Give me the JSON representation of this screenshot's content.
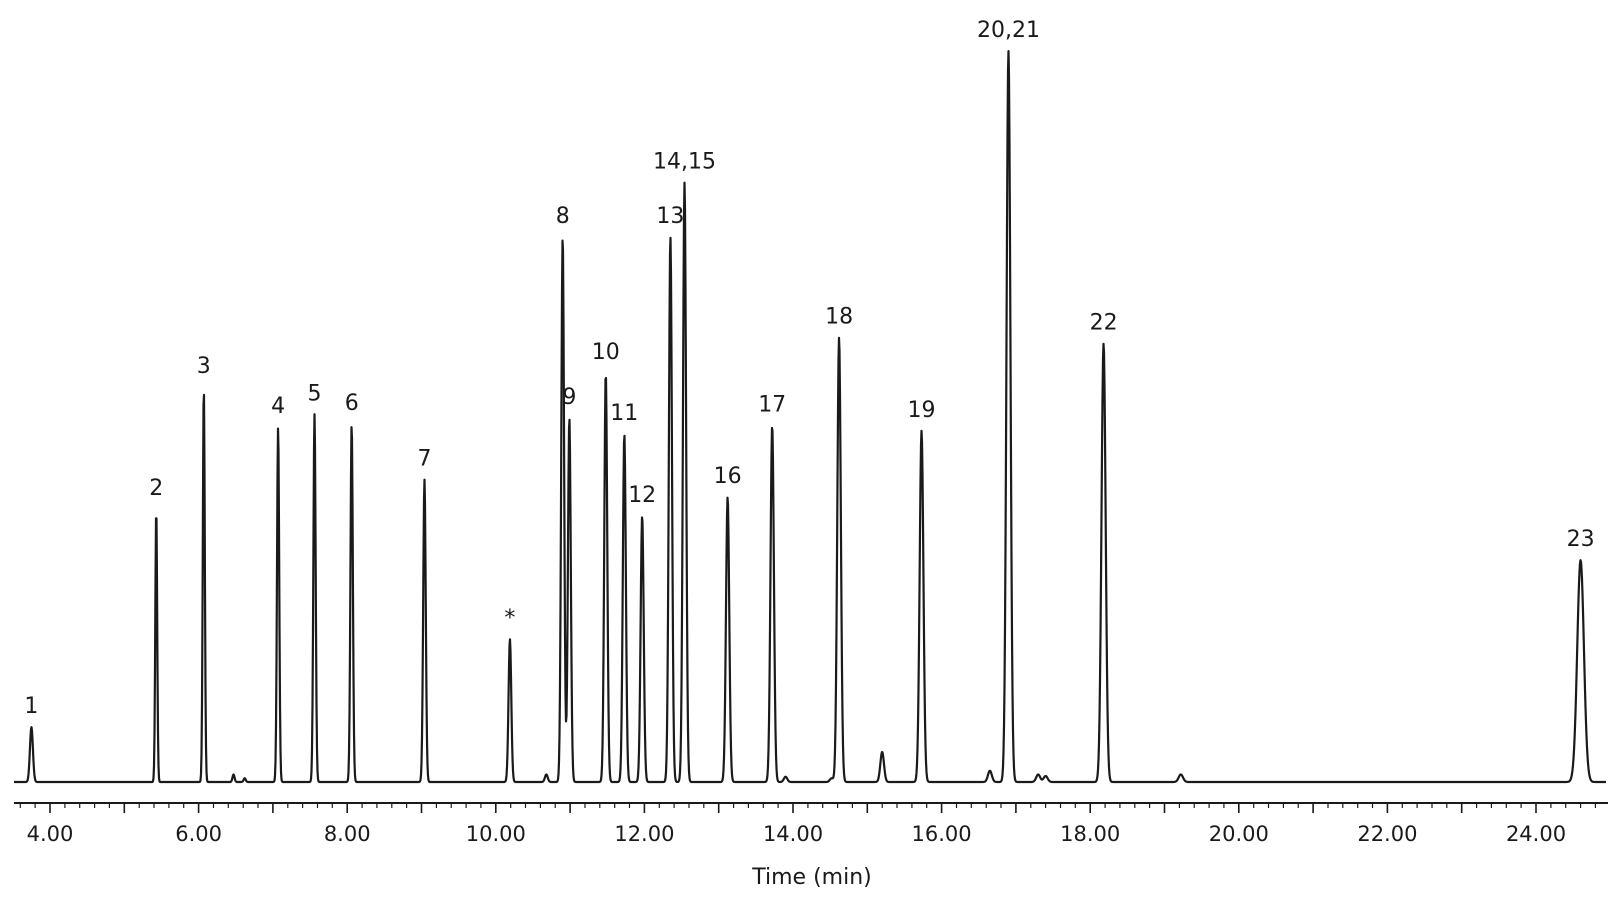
{
  "chart_data": {
    "type": "line",
    "title": "",
    "xlabel": "Time (min)",
    "ylabel": "",
    "xlim": [
      3.5,
      25.0
    ],
    "ylim": [
      0,
      100
    ],
    "grid": false,
    "x_ticks": [
      "4.00",
      "6.00",
      "8.00",
      "10.00",
      "12.00",
      "14.00",
      "16.00",
      "18.00",
      "20.00",
      "22.00",
      "24.00"
    ],
    "peaks": [
      {
        "label": "1",
        "x": 3.75,
        "y": 7.3
      },
      {
        "label": "2",
        "x": 5.43,
        "y": 36.3
      },
      {
        "label": "3",
        "x": 6.07,
        "y": 52.5
      },
      {
        "label": "4",
        "x": 7.07,
        "y": 47.2
      },
      {
        "label": "5",
        "x": 7.56,
        "y": 48.9
      },
      {
        "label": "6",
        "x": 8.06,
        "y": 47.6
      },
      {
        "label": "7",
        "x": 9.04,
        "y": 40.2
      },
      {
        "label": "*",
        "x": 10.19,
        "y": 19.0
      },
      {
        "label": "8",
        "x": 10.9,
        "y": 72.5
      },
      {
        "label": "9",
        "x": 10.99,
        "y": 48.4
      },
      {
        "label": "10",
        "x": 11.48,
        "y": 54.4
      },
      {
        "label": "11",
        "x": 11.73,
        "y": 46.3
      },
      {
        "label": "12",
        "x": 11.97,
        "y": 35.4
      },
      {
        "label": "13",
        "x": 12.35,
        "y": 72.5
      },
      {
        "label": "14,15",
        "x": 12.54,
        "y": 79.7
      },
      {
        "label": "16",
        "x": 13.12,
        "y": 37.9
      },
      {
        "label": "17",
        "x": 13.72,
        "y": 47.4
      },
      {
        "label": "18",
        "x": 14.62,
        "y": 59.1
      },
      {
        "label": "19",
        "x": 15.73,
        "y": 46.7
      },
      {
        "label": "20,21",
        "x": 16.9,
        "y": 97.2
      },
      {
        "label": "22",
        "x": 18.18,
        "y": 58.3
      },
      {
        "label": "23",
        "x": 24.6,
        "y": 29.5
      }
    ],
    "minor_peaks": [
      {
        "x": 6.47,
        "y": 1.0
      },
      {
        "x": 6.62,
        "y": 0.5
      },
      {
        "x": 10.68,
        "y": 1.0
      },
      {
        "x": 13.9,
        "y": 0.7
      },
      {
        "x": 14.52,
        "y": 0.5
      },
      {
        "x": 15.2,
        "y": 4.0
      },
      {
        "x": 16.65,
        "y": 1.5
      },
      {
        "x": 17.3,
        "y": 1.0
      },
      {
        "x": 17.4,
        "y": 0.8
      },
      {
        "x": 19.22,
        "y": 1.0
      }
    ]
  }
}
